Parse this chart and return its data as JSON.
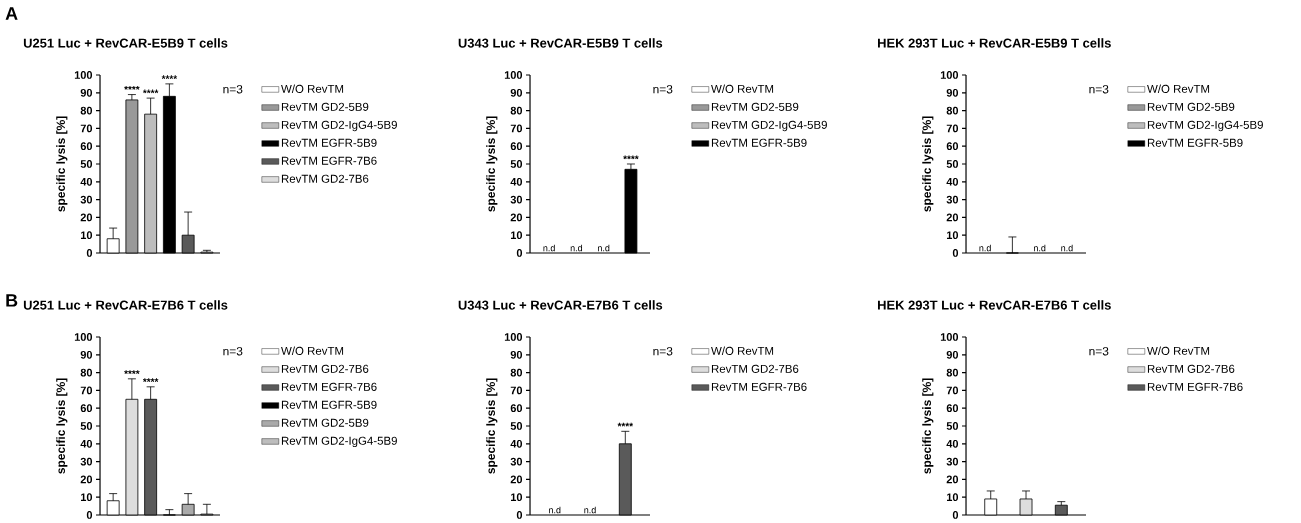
{
  "chart_data": [
    {
      "type": "bar",
      "title": "U251 Luc + RevCAR-E5B9 T cells",
      "ylabel": "specific lysis [%]",
      "categories": [
        null,
        null,
        null,
        null,
        null,
        null
      ],
      "ylim": [
        0,
        100
      ],
      "yticks": [
        0,
        10,
        20,
        30,
        40,
        50,
        60,
        70,
        80,
        90,
        100
      ],
      "tick_labels": "y",
      "legend": "right",
      "annotations": [
        "A",
        "n=3"
      ],
      "series": [
        {
          "name": "W/O RevTM",
          "color": "#ffffff",
          "values": [
            8,
            null,
            null,
            null,
            null,
            null
          ],
          "errors": [
            6,
            null,
            null,
            null,
            null,
            null
          ]
        },
        {
          "name": "RevTM GD2-5B9",
          "color": "#999999",
          "values": [
            null,
            86,
            null,
            null,
            null,
            null
          ],
          "errors": [
            null,
            3,
            null,
            null,
            null,
            null
          ],
          "value_labels": [
            null,
            "****",
            null,
            null,
            null,
            null
          ]
        },
        {
          "name": "RevTM GD2-IgG4-5B9",
          "color": "#bdbdbd",
          "values": [
            null,
            null,
            78,
            null,
            null,
            null
          ],
          "errors": [
            null,
            null,
            9,
            null,
            null,
            null
          ],
          "value_labels": [
            null,
            null,
            "****",
            null,
            null,
            null
          ]
        },
        {
          "name": "RevTM EGFR-5B9",
          "color": "#000000",
          "values": [
            null,
            null,
            null,
            88,
            null,
            null
          ],
          "errors": [
            null,
            null,
            null,
            7,
            null,
            null
          ],
          "value_labels": [
            null,
            null,
            null,
            "****",
            null,
            null
          ]
        },
        {
          "name": "RevTM EGFR-7B6",
          "color": "#5a5a5a",
          "values": [
            null,
            null,
            null,
            null,
            10,
            null
          ],
          "errors": [
            null,
            null,
            null,
            null,
            13,
            null
          ]
        },
        {
          "name": "RevTM GD2-7B6",
          "color": "#dddddd",
          "values": [
            null,
            null,
            null,
            null,
            null,
            0.5
          ],
          "errors": [
            null,
            null,
            null,
            null,
            null,
            1
          ]
        }
      ]
    },
    {
      "type": "bar",
      "title": "U343 Luc + RevCAR-E5B9 T cells",
      "ylabel": "specific lysis [%]",
      "categories": [
        null,
        null,
        null,
        null
      ],
      "ylim": [
        0,
        100
      ],
      "yticks": [
        0,
        10,
        20,
        30,
        40,
        50,
        60,
        70,
        80,
        90,
        100
      ],
      "tick_labels": "y",
      "legend": "right",
      "annotations": [
        "n=3"
      ],
      "series": [
        {
          "name": "W/O RevTM",
          "color": "#ffffff",
          "values": [
            null,
            null,
            null,
            null
          ],
          "value_labels": [
            "n.d",
            null,
            null,
            null
          ]
        },
        {
          "name": "RevTM GD2-5B9",
          "color": "#999999",
          "values": [
            null,
            null,
            null,
            null
          ],
          "value_labels": [
            null,
            "n.d",
            null,
            null
          ]
        },
        {
          "name": "RevTM GD2-IgG4-5B9",
          "color": "#bdbdbd",
          "values": [
            null,
            null,
            null,
            null
          ],
          "value_labels": [
            null,
            null,
            "n.d",
            null
          ]
        },
        {
          "name": "RevTM EGFR-5B9",
          "color": "#000000",
          "values": [
            null,
            null,
            null,
            47
          ],
          "errors": [
            null,
            null,
            null,
            3
          ],
          "value_labels": [
            null,
            null,
            null,
            "****"
          ]
        }
      ]
    },
    {
      "type": "bar",
      "title": "HEK 293T Luc + RevCAR-E5B9 T cells",
      "ylabel": "specific lysis [%]",
      "categories": [
        null,
        null,
        null,
        null
      ],
      "ylim": [
        0,
        100
      ],
      "yticks": [
        0,
        10,
        20,
        30,
        40,
        50,
        60,
        70,
        80,
        90,
        100
      ],
      "tick_labels": "y",
      "legend": "right",
      "annotations": [
        "n=3"
      ],
      "series": [
        {
          "name": "W/O RevTM",
          "color": "#ffffff",
          "values": [
            null,
            null,
            null,
            null
          ],
          "value_labels": [
            "n.d",
            null,
            null,
            null
          ]
        },
        {
          "name": "RevTM GD2-5B9",
          "color": "#999999",
          "values": [
            null,
            0,
            null,
            null
          ],
          "errors": [
            null,
            9,
            null,
            null
          ]
        },
        {
          "name": "RevTM GD2-IgG4-5B9",
          "color": "#bdbdbd",
          "values": [
            null,
            null,
            null,
            null
          ],
          "value_labels": [
            null,
            null,
            "n.d",
            null
          ]
        },
        {
          "name": "RevTM EGFR-5B9",
          "color": "#000000",
          "values": [
            null,
            null,
            null,
            null
          ],
          "value_labels": [
            null,
            null,
            null,
            "n.d"
          ]
        }
      ]
    },
    {
      "type": "bar",
      "title": "U251 Luc + RevCAR-E7B6 T cells",
      "ylabel": "specific lysis [%]",
      "categories": [
        null,
        null,
        null,
        null,
        null,
        null
      ],
      "ylim": [
        0,
        100
      ],
      "yticks": [
        0,
        10,
        20,
        30,
        40,
        50,
        60,
        70,
        80,
        90,
        100
      ],
      "tick_labels": "y",
      "legend": "right",
      "annotations": [
        "B",
        "n=3"
      ],
      "series": [
        {
          "name": "W/O RevTM",
          "color": "#ffffff",
          "values": [
            8,
            null,
            null,
            null,
            null,
            null
          ],
          "errors": [
            4,
            null,
            null,
            null,
            null,
            null
          ]
        },
        {
          "name": "RevTM GD2-7B6",
          "color": "#dddddd",
          "values": [
            null,
            65,
            null,
            null,
            null,
            null
          ],
          "errors": [
            null,
            11.5,
            null,
            null,
            null,
            null
          ],
          "value_labels": [
            null,
            "****",
            null,
            null,
            null,
            null
          ]
        },
        {
          "name": "RevTM EGFR-7B6",
          "color": "#5a5a5a",
          "values": [
            null,
            null,
            65,
            null,
            null,
            null
          ],
          "errors": [
            null,
            null,
            7,
            null,
            null,
            null
          ],
          "value_labels": [
            null,
            null,
            "****",
            null,
            null,
            null
          ]
        },
        {
          "name": "RevTM EGFR-5B9",
          "color": "#000000",
          "values": [
            null,
            null,
            null,
            0,
            null,
            null
          ],
          "errors": [
            null,
            null,
            null,
            3,
            null,
            null
          ]
        },
        {
          "name": "RevTM GD2-5B9",
          "color": "#aaaaaa",
          "values": [
            null,
            null,
            null,
            null,
            6,
            null
          ],
          "errors": [
            null,
            null,
            null,
            null,
            6,
            null
          ]
        },
        {
          "name": "RevTM GD2-IgG4-5B9",
          "color": "#bdbdbd",
          "values": [
            null,
            null,
            null,
            null,
            null,
            0.5
          ],
          "errors": [
            null,
            null,
            null,
            null,
            null,
            5.5
          ]
        }
      ]
    },
    {
      "type": "bar",
      "title": "U343 Luc + RevCAR-E7B6 T cells",
      "ylabel": "specific lysis [%]",
      "categories": [
        null,
        null,
        null
      ],
      "ylim": [
        0,
        100
      ],
      "yticks": [
        0,
        10,
        20,
        30,
        40,
        50,
        60,
        70,
        80,
        90,
        100
      ],
      "tick_labels": "y",
      "legend": "right",
      "annotations": [
        "n=3"
      ],
      "series": [
        {
          "name": "W/O RevTM",
          "color": "#ffffff",
          "values": [
            null,
            null,
            null
          ],
          "value_labels": [
            "n.d",
            null,
            null
          ]
        },
        {
          "name": "RevTM GD2-7B6",
          "color": "#dddddd",
          "values": [
            null,
            null,
            null
          ],
          "value_labels": [
            null,
            "n.d",
            null
          ]
        },
        {
          "name": "RevTM EGFR-7B6",
          "color": "#5a5a5a",
          "values": [
            null,
            null,
            40
          ],
          "errors": [
            null,
            null,
            7
          ],
          "value_labels": [
            null,
            null,
            "****"
          ]
        }
      ]
    },
    {
      "type": "bar",
      "title": "HEK 293T Luc + RevCAR-E7B6 T cells",
      "ylabel": "specific lysis [%]",
      "categories": [
        null,
        null,
        null
      ],
      "ylim": [
        0,
        100
      ],
      "yticks": [
        0,
        10,
        20,
        30,
        40,
        50,
        60,
        70,
        80,
        90,
        100
      ],
      "tick_labels": "y",
      "legend": "right",
      "annotations": [
        "n=3"
      ],
      "series": [
        {
          "name": "W/O RevTM",
          "color": "#ffffff",
          "values": [
            9,
            null,
            null
          ],
          "errors": [
            4.5,
            null,
            null
          ]
        },
        {
          "name": "RevTM GD2-7B6",
          "color": "#dddddd",
          "values": [
            null,
            9,
            null
          ],
          "errors": [
            null,
            4.5,
            null
          ]
        },
        {
          "name": "RevTM EGFR-7B6",
          "color": "#5a5a5a",
          "values": [
            null,
            null,
            5.5
          ],
          "errors": [
            null,
            null,
            2
          ]
        }
      ]
    }
  ]
}
